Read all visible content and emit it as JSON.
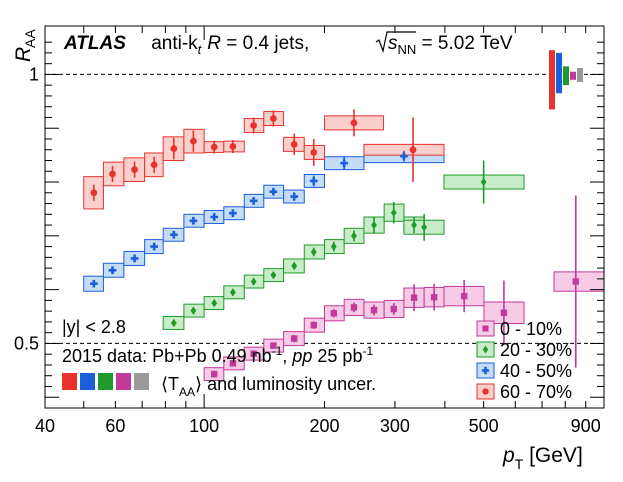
{
  "chart_data": {
    "type": "scatter",
    "title": {
      "experiment": "ATLAS",
      "jets_prefix": "anti-k",
      "jets_sub": "t",
      "jets_R_label": "R",
      "jets_R_value": " = 0.4 jets,",
      "energy_s": "s",
      "energy_sub": "NN",
      "energy_value": " = 5.02 TeV"
    },
    "ylabel": "R",
    "ylabel_sub": "AA",
    "xlabel": "p",
    "xlabel_sub": "T",
    "xlabel_unit": " [GeV]",
    "xscale": "log",
    "xlim": [
      40,
      1000
    ],
    "ylim": [
      0.38,
      1.09
    ],
    "xticks": [
      {
        "value": 40,
        "label": "40"
      },
      {
        "value": 60,
        "label": "60"
      },
      {
        "value": 100,
        "label": "100"
      },
      {
        "value": 200,
        "label": "200"
      },
      {
        "value": 300,
        "label": "300"
      },
      {
        "value": 500,
        "label": "500"
      },
      {
        "value": 900,
        "label": "900"
      }
    ],
    "yticks": [
      {
        "value": 0.5,
        "label": "0.5"
      },
      {
        "value": 1.0,
        "label": "1"
      }
    ],
    "reference_lines": [
      0.5,
      1.0
    ],
    "annotations": {
      "rapidity": "|y| < 2.8",
      "data_text": "2015 data: Pb+Pb 0.49 nb",
      "data_sup1": "-1",
      "data_sep": ", ",
      "data_pp": "pp",
      "data_text2": " 25 pb",
      "data_sup2": "-1",
      "uncer_text": "⟨T",
      "uncer_sub": "AA",
      "uncer_text2": "⟩ and luminosity uncer."
    },
    "global_uncertainty_bars": [
      {
        "color": "#e8322f",
        "lo": 0.935,
        "hi": 1.045
      },
      {
        "color": "#1a5fd9",
        "lo": 0.965,
        "hi": 1.04
      },
      {
        "color": "#1e9a2b",
        "lo": 0.98,
        "hi": 1.015
      },
      {
        "color": "#c2399a",
        "lo": 0.99,
        "hi": 1.005
      },
      {
        "color": "#9a9a9a",
        "lo": 0.986,
        "hi": 1.012
      }
    ],
    "legend_position": "bottom-right",
    "series": [
      {
        "name": "0 - 10%",
        "marker": "square",
        "color": "#c2399a",
        "fill": "#f5cbe6",
        "points": [
          {
            "x": 106,
            "xlo": 100,
            "xhi": 112,
            "y": 0.443,
            "stat": 0.006,
            "sys": 0.012
          },
          {
            "x": 118,
            "xlo": 112,
            "xhi": 126,
            "y": 0.463,
            "stat": 0.006,
            "sys": 0.012
          },
          {
            "x": 133,
            "xlo": 126,
            "xhi": 141,
            "y": 0.481,
            "stat": 0.006,
            "sys": 0.012
          },
          {
            "x": 149,
            "xlo": 141,
            "xhi": 158,
            "y": 0.496,
            "stat": 0.006,
            "sys": 0.012
          },
          {
            "x": 168,
            "xlo": 158,
            "xhi": 178,
            "y": 0.509,
            "stat": 0.007,
            "sys": 0.013
          },
          {
            "x": 188,
            "xlo": 178,
            "xhi": 200,
            "y": 0.534,
            "stat": 0.007,
            "sys": 0.013
          },
          {
            "x": 211,
            "xlo": 200,
            "xhi": 224,
            "y": 0.556,
            "stat": 0.008,
            "sys": 0.014
          },
          {
            "x": 237,
            "xlo": 224,
            "xhi": 251,
            "y": 0.567,
            "stat": 0.009,
            "sys": 0.015
          },
          {
            "x": 266,
            "xlo": 251,
            "xhi": 282,
            "y": 0.562,
            "stat": 0.01,
            "sys": 0.015
          },
          {
            "x": 298,
            "xlo": 282,
            "xhi": 316,
            "y": 0.564,
            "stat": 0.011,
            "sys": 0.016
          },
          {
            "x": 335,
            "xlo": 316,
            "xhi": 355,
            "y": 0.585,
            "stat": 0.025,
            "sys": 0.018
          },
          {
            "x": 376,
            "xlo": 355,
            "xhi": 398,
            "y": 0.586,
            "stat": 0.025,
            "sys": 0.018
          },
          {
            "x": 447,
            "xlo": 398,
            "xhi": 501,
            "y": 0.588,
            "stat": 0.03,
            "sys": 0.018
          },
          {
            "x": 562,
            "xlo": 501,
            "xhi": 631,
            "y": 0.557,
            "stat": 0.06,
            "sys": 0.02
          },
          {
            "x": 850,
            "xlo": 750,
            "xhi": 1000,
            "y": 0.615,
            "stat": 0.16,
            "sys": 0.018
          }
        ]
      },
      {
        "name": "20 - 30%",
        "marker": "diamond",
        "color": "#1e9a2b",
        "fill": "#c8ecc8",
        "points": [
          {
            "x": 84,
            "xlo": 79,
            "xhi": 89,
            "y": 0.538,
            "stat": 0.006,
            "sys": 0.012
          },
          {
            "x": 94,
            "xlo": 89,
            "xhi": 100,
            "y": 0.561,
            "stat": 0.006,
            "sys": 0.012
          },
          {
            "x": 106,
            "xlo": 100,
            "xhi": 112,
            "y": 0.575,
            "stat": 0.006,
            "sys": 0.012
          },
          {
            "x": 118,
            "xlo": 112,
            "xhi": 126,
            "y": 0.595,
            "stat": 0.006,
            "sys": 0.012
          },
          {
            "x": 133,
            "xlo": 126,
            "xhi": 141,
            "y": 0.615,
            "stat": 0.006,
            "sys": 0.012
          },
          {
            "x": 149,
            "xlo": 141,
            "xhi": 158,
            "y": 0.627,
            "stat": 0.006,
            "sys": 0.012
          },
          {
            "x": 168,
            "xlo": 158,
            "xhi": 178,
            "y": 0.644,
            "stat": 0.007,
            "sys": 0.013
          },
          {
            "x": 188,
            "xlo": 178,
            "xhi": 200,
            "y": 0.67,
            "stat": 0.008,
            "sys": 0.013
          },
          {
            "x": 211,
            "xlo": 200,
            "xhi": 224,
            "y": 0.68,
            "stat": 0.009,
            "sys": 0.013
          },
          {
            "x": 237,
            "xlo": 224,
            "xhi": 251,
            "y": 0.7,
            "stat": 0.01,
            "sys": 0.014
          },
          {
            "x": 266,
            "xlo": 251,
            "xhi": 282,
            "y": 0.72,
            "stat": 0.015,
            "sys": 0.015
          },
          {
            "x": 298,
            "xlo": 282,
            "xhi": 316,
            "y": 0.743,
            "stat": 0.02,
            "sys": 0.016
          },
          {
            "x": 335,
            "xlo": 316,
            "xhi": 355,
            "y": 0.72,
            "stat": 0.015,
            "sys": 0.015
          },
          {
            "x": 355,
            "xlo": 316,
            "xhi": 398,
            "y": 0.716,
            "stat": 0.025,
            "sys": 0.013
          },
          {
            "x": 500,
            "xlo": 398,
            "xhi": 631,
            "y": 0.8,
            "stat": 0.04,
            "sys": 0.013
          }
        ]
      },
      {
        "name": "40 - 50%",
        "marker": "cross",
        "color": "#1a5fd9",
        "fill": "#c5dcf7",
        "points": [
          {
            "x": 53,
            "xlo": 50,
            "xhi": 56,
            "y": 0.611,
            "stat": 0.006,
            "sys": 0.014
          },
          {
            "x": 59,
            "xlo": 56,
            "xhi": 63,
            "y": 0.636,
            "stat": 0.006,
            "sys": 0.013
          },
          {
            "x": 67,
            "xlo": 63,
            "xhi": 71,
            "y": 0.658,
            "stat": 0.006,
            "sys": 0.013
          },
          {
            "x": 75,
            "xlo": 71,
            "xhi": 79,
            "y": 0.68,
            "stat": 0.006,
            "sys": 0.013
          },
          {
            "x": 84,
            "xlo": 79,
            "xhi": 89,
            "y": 0.702,
            "stat": 0.006,
            "sys": 0.012
          },
          {
            "x": 94,
            "xlo": 89,
            "xhi": 100,
            "y": 0.728,
            "stat": 0.006,
            "sys": 0.012
          },
          {
            "x": 106,
            "xlo": 100,
            "xhi": 112,
            "y": 0.735,
            "stat": 0.006,
            "sys": 0.012
          },
          {
            "x": 118,
            "xlo": 112,
            "xhi": 126,
            "y": 0.742,
            "stat": 0.006,
            "sys": 0.012
          },
          {
            "x": 133,
            "xlo": 126,
            "xhi": 141,
            "y": 0.765,
            "stat": 0.006,
            "sys": 0.012
          },
          {
            "x": 149,
            "xlo": 141,
            "xhi": 158,
            "y": 0.782,
            "stat": 0.007,
            "sys": 0.012
          },
          {
            "x": 168,
            "xlo": 158,
            "xhi": 178,
            "y": 0.773,
            "stat": 0.008,
            "sys": 0.012
          },
          {
            "x": 188,
            "xlo": 178,
            "xhi": 200,
            "y": 0.802,
            "stat": 0.01,
            "sys": 0.012
          },
          {
            "x": 224,
            "xlo": 200,
            "xhi": 251,
            "y": 0.835,
            "stat": 0.012,
            "sys": 0.012
          },
          {
            "x": 316,
            "xlo": 251,
            "xhi": 398,
            "y": 0.848,
            "stat": 0.01,
            "sys": 0.012
          }
        ]
      },
      {
        "name": "60 - 70%",
        "marker": "circle",
        "color": "#e8322f",
        "fill": "#fbd0cc",
        "points": [
          {
            "x": 53,
            "xlo": 50,
            "xhi": 56,
            "y": 0.78,
            "stat": 0.015,
            "sys": 0.03
          },
          {
            "x": 59,
            "xlo": 56,
            "xhi": 63,
            "y": 0.815,
            "stat": 0.015,
            "sys": 0.022
          },
          {
            "x": 67,
            "xlo": 63,
            "xhi": 71,
            "y": 0.823,
            "stat": 0.015,
            "sys": 0.022
          },
          {
            "x": 75,
            "xlo": 71,
            "xhi": 79,
            "y": 0.832,
            "stat": 0.015,
            "sys": 0.022
          },
          {
            "x": 84,
            "xlo": 79,
            "xhi": 89,
            "y": 0.862,
            "stat": 0.02,
            "sys": 0.022
          },
          {
            "x": 94,
            "xlo": 89,
            "xhi": 100,
            "y": 0.876,
            "stat": 0.02,
            "sys": 0.022
          },
          {
            "x": 106,
            "xlo": 100,
            "xhi": 112,
            "y": 0.865,
            "stat": 0.012,
            "sys": 0.01
          },
          {
            "x": 118,
            "xlo": 112,
            "xhi": 126,
            "y": 0.866,
            "stat": 0.012,
            "sys": 0.01
          },
          {
            "x": 133,
            "xlo": 126,
            "xhi": 141,
            "y": 0.905,
            "stat": 0.015,
            "sys": 0.013
          },
          {
            "x": 149,
            "xlo": 141,
            "xhi": 158,
            "y": 0.918,
            "stat": 0.015,
            "sys": 0.013
          },
          {
            "x": 168,
            "xlo": 158,
            "xhi": 178,
            "y": 0.87,
            "stat": 0.02,
            "sys": 0.013
          },
          {
            "x": 188,
            "xlo": 178,
            "xhi": 200,
            "y": 0.855,
            "stat": 0.025,
            "sys": 0.013
          },
          {
            "x": 237,
            "xlo": 200,
            "xhi": 281,
            "y": 0.91,
            "stat": 0.025,
            "sys": 0.013
          },
          {
            "x": 333,
            "xlo": 251,
            "xhi": 398,
            "y": 0.86,
            "stat": 0.06,
            "sys": 0.01
          }
        ]
      }
    ]
  }
}
